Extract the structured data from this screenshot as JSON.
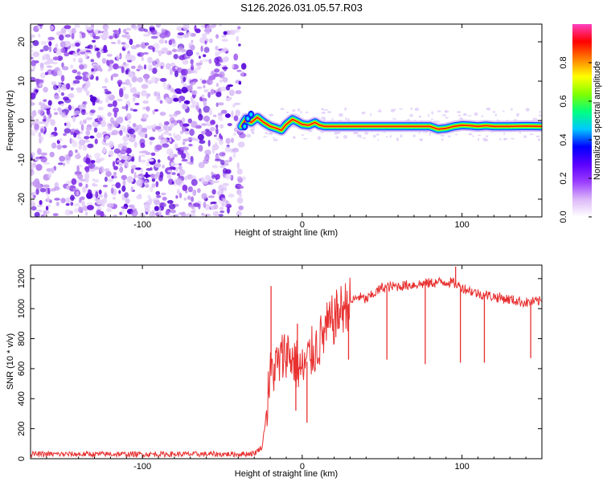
{
  "title": "S126.2026.031.05.57.R03",
  "chart_data": [
    {
      "type": "heatmap",
      "name": "spectrogram",
      "xlabel": "Height of straight line (km)",
      "ylabel": "Frequency (Hz)",
      "xlim": [
        -170,
        150
      ],
      "ylim": [
        -24.5,
        24.5
      ],
      "xticks": [
        -100,
        0,
        100
      ],
      "xtick_labels": [
        "-100",
        "0",
        "100"
      ],
      "yticks": [
        -20,
        -10,
        0,
        10,
        20
      ],
      "ytick_labels": [
        "-20",
        "-10",
        "0",
        "10",
        "20"
      ],
      "noise_region_x": [
        -170,
        -40
      ],
      "signal_trace": {
        "x": [
          -38,
          -35,
          -32,
          -28,
          -24,
          -20,
          -16,
          -13,
          -10,
          -6,
          -3,
          0,
          4,
          8,
          11,
          14,
          40,
          70,
          80,
          85,
          90,
          95,
          100,
          105,
          110,
          115,
          120,
          130,
          140,
          150
        ],
        "y": [
          -1.5,
          0.5,
          -0.5,
          0.8,
          -0.5,
          -1.5,
          -2,
          -2.5,
          -1,
          0.3,
          -0.3,
          -1,
          -1.2,
          -0.5,
          -1.2,
          -1.5,
          -1.5,
          -1.5,
          -1.5,
          -2.2,
          -2,
          -1.5,
          -1.2,
          -1.3,
          -1.5,
          -1.3,
          -1.5,
          -1.5,
          -1.4,
          -1.5
        ]
      },
      "colorbar": {
        "label": "Normalized spectral amplitude",
        "range": [
          0,
          1
        ],
        "ticks": [
          0.0,
          0.2,
          0.4,
          0.6,
          0.8
        ],
        "tick_labels": [
          "0.0",
          "0.2",
          "0.4",
          "0.6",
          "0.8"
        ],
        "colors": [
          "#ffffff",
          "#dcb8f8",
          "#9b3dff",
          "#5a00ff",
          "#0000ff",
          "#00c8ff",
          "#00ff80",
          "#80ff00",
          "#ffff00",
          "#ff8000",
          "#ff0000",
          "#ff40c0"
        ]
      }
    },
    {
      "type": "line",
      "name": "snr",
      "xlabel": "Height of straight line (km)",
      "ylabel": "SNR (10 * v/v)",
      "xlim": [
        -170,
        150
      ],
      "ylim": [
        0,
        1290
      ],
      "xticks": [
        -100,
        0,
        100
      ],
      "xtick_labels": [
        "-100",
        "0",
        "100"
      ],
      "yticks": [
        0,
        200,
        400,
        600,
        800,
        1000,
        1200
      ],
      "ytick_labels": [
        "0",
        "200",
        "400",
        "600",
        "800",
        "1000",
        "1200"
      ],
      "color": "#e83030",
      "series": [
        {
          "name": "SNR envelope",
          "x": [
            -170,
            -40,
            -30,
            -25,
            -22,
            -20,
            -18,
            -15,
            -10,
            -5,
            0,
            5,
            10,
            15,
            20,
            25,
            30,
            35,
            40,
            50,
            60,
            70,
            80,
            90,
            95,
            100,
            110,
            120,
            130,
            140,
            150
          ],
          "y": [
            30,
            30,
            35,
            80,
            350,
            550,
            600,
            620,
            720,
            650,
            580,
            690,
            760,
            860,
            930,
            1000,
            1040,
            1080,
            1060,
            1140,
            1150,
            1160,
            1170,
            1180,
            1170,
            1140,
            1100,
            1080,
            1060,
            1040,
            1050
          ]
        }
      ],
      "spikes": [
        {
          "x": -19.5,
          "y": 1150
        },
        {
          "x": -3,
          "y": 900
        },
        {
          "x": -4,
          "y": 320
        },
        {
          "x": 3,
          "y": 240
        },
        {
          "x": 18,
          "y": 950
        },
        {
          "x": 29,
          "y": 660
        },
        {
          "x": 53,
          "y": 660
        },
        {
          "x": 77,
          "y": 630
        },
        {
          "x": 96,
          "y": 1280
        },
        {
          "x": 99,
          "y": 640
        },
        {
          "x": 114,
          "y": 640
        },
        {
          "x": 143,
          "y": 670
        }
      ]
    }
  ]
}
